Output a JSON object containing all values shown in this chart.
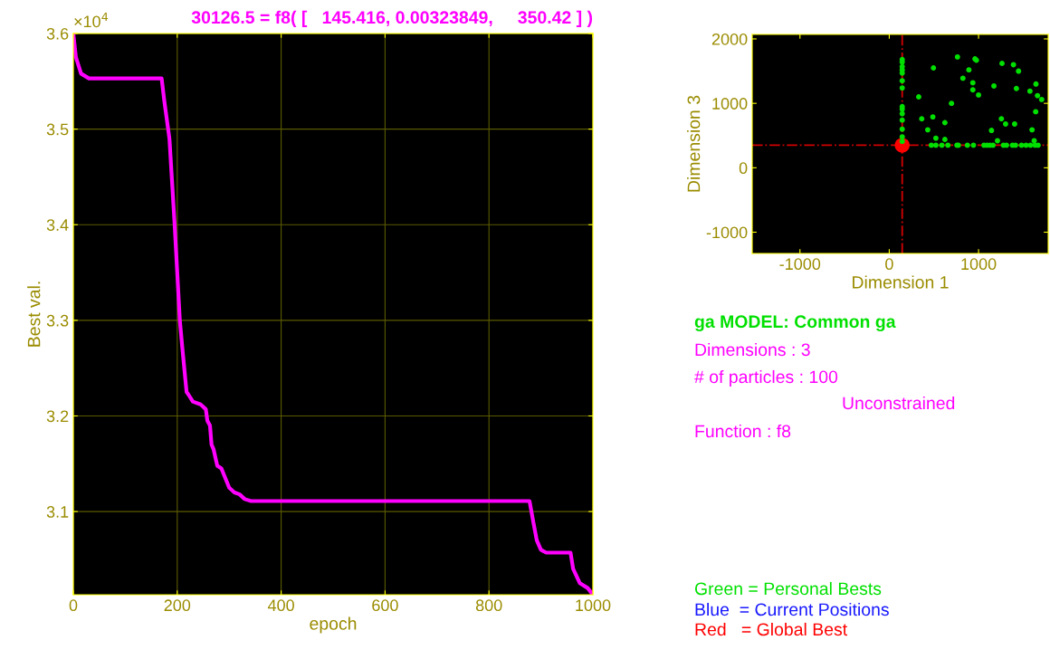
{
  "chart_data": [
    {
      "type": "line",
      "title": "30126.5 = f8( [   145.416, 0.00323849,     350.42 ] )",
      "xlabel": "epoch",
      "ylabel": "Best val.",
      "annotations": [
        "×10$^{4}$"
      ],
      "x": [
        0,
        5,
        15,
        30,
        170,
        175,
        185,
        195,
        205,
        210,
        218,
        222,
        230,
        245,
        255,
        258,
        263,
        266,
        270,
        277,
        285,
        300,
        310,
        320,
        330,
        342,
        400,
        878,
        885,
        892,
        900,
        910,
        957,
        962,
        975,
        990,
        1000
      ],
      "series": [
        {
          "color": "#ff00ff",
          "values": [
            3.6,
            3.575,
            3.558,
            3.553,
            3.553,
            3.53,
            3.49,
            3.4,
            3.3,
            3.27,
            3.225,
            3.222,
            3.215,
            3.212,
            3.207,
            3.195,
            3.19,
            3.17,
            3.165,
            3.148,
            3.145,
            3.125,
            3.12,
            3.118,
            3.113,
            3.111,
            3.111,
            3.111,
            3.09,
            3.07,
            3.06,
            3.057,
            3.057,
            3.04,
            3.025,
            3.02,
            3.013
          ]
        }
      ],
      "xlim": [
        0,
        1000
      ],
      "xticks": [
        0,
        200,
        400,
        600,
        800,
        1000
      ],
      "ylim": [
        3.013,
        3.6
      ],
      "yticks": [
        3.1,
        3.2,
        3.3,
        3.4,
        3.5,
        3.6
      ],
      "grid": true,
      "marker": "none",
      "line_style": "solid"
    },
    {
      "type": "scatter",
      "xlabel": "Dimension 1",
      "ylabel": "Dimension 3",
      "series": [
        {
          "color": "#00e000",
          "x": [
            145,
            145,
            145,
            145,
            145,
            145,
            145,
            145,
            145,
            145,
            145,
            145,
            145,
            145,
            471,
            522,
            589,
            657,
            758,
            774,
            875,
            943,
            1061,
            1094,
            1128,
            1162,
            1279,
            1313,
            1380,
            1414,
            1481,
            1532,
            1582,
            1633,
            1667,
            495,
            764,
            892,
            825,
            960,
            976,
            936,
            936,
            1000,
            330,
            697,
            364,
            488,
            431,
            522,
            623,
            623,
            1263,
            1391,
            1448,
            1172,
            1424,
            1576,
            1643,
            1660,
            1707,
            1640,
            1256,
            1303,
            1404,
            1145,
            1212,
            1599,
            1623
          ],
          "values": [
            1680,
            1640,
            1570,
            1520,
            1470,
            1350,
            1240,
            950,
            910,
            840,
            740,
            600,
            480,
            410,
            350,
            350,
            350,
            350,
            350,
            350,
            350,
            350,
            350,
            350,
            350,
            350,
            350,
            350,
            350,
            350,
            350,
            350,
            350,
            350,
            350,
            1550,
            1720,
            1520,
            1390,
            1690,
            1670,
            1320,
            1210,
            1130,
            1100,
            1000,
            760,
            790,
            590,
            460,
            700,
            440,
            1620,
            1600,
            1500,
            1270,
            1230,
            1190,
            1300,
            1120,
            1060,
            870,
            760,
            680,
            680,
            580,
            420,
            590,
            420
          ]
        },
        {
          "color": "#ff0000",
          "x": [
            145
          ],
          "values": [
            350
          ]
        }
      ],
      "ref_lines": [
        {
          "axis": "x",
          "value": 145,
          "label": null,
          "color": "#d00000",
          "line_style": "dashed"
        },
        {
          "axis": "y",
          "value": 350,
          "label": null,
          "color": "#d00000",
          "line_style": "dashed"
        }
      ],
      "xlim": [
        -1535,
        1780
      ],
      "xticks": [
        -1000,
        0,
        1000
      ],
      "ylim": [
        -1330,
        2070
      ],
      "yticks": [
        -1000,
        0,
        1000,
        2000
      ],
      "grid": false,
      "marker": "circle"
    },
    {
      "type": "other",
      "annotations": [
        "ga MODEL: Common ga",
        "Dimensions : 3",
        "# of particles : 100",
        "Unconstrained",
        "Function : f8",
        "Green = Personal Bests",
        "Blue  = Current Positions",
        "Red   = Global Best"
      ],
      "colors": [
        "#00e000",
        "#ff00ff",
        "#ff00ff",
        "#ff00ff",
        "#ff00ff",
        "#00e000",
        "#1a1aff",
        "#ff0000"
      ]
    }
  ]
}
